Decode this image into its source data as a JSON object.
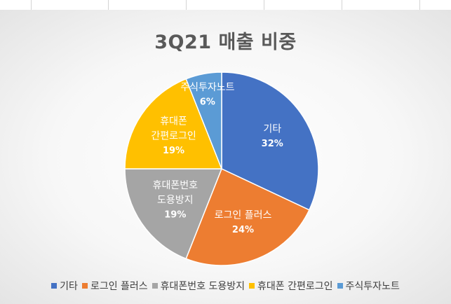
{
  "chart_data": {
    "type": "pie",
    "title": "3Q21 매출 비중",
    "categories": [
      "기타",
      "로그인 플러스",
      "휴대폰번호 도용방지",
      "휴대폰 간편로그인",
      "주식투자노트"
    ],
    "values": [
      32,
      24,
      19,
      19,
      6
    ],
    "value_labels": [
      "32%",
      "24%",
      "19%",
      "19%",
      "6%"
    ],
    "colors": [
      "#4472c4",
      "#ed7d31",
      "#a5a5a5",
      "#ffc000",
      "#5b9bd5"
    ],
    "slice_label_lines": [
      [
        "기타"
      ],
      [
        "로그인 플러스"
      ],
      [
        "휴대폰번호",
        "도용방지"
      ],
      [
        "휴대폰",
        "간편로그인"
      ],
      [
        "주식투자노트"
      ]
    ],
    "legend_position": "bottom",
    "start_angle": "12 o'clock",
    "direction": "clockwise"
  }
}
